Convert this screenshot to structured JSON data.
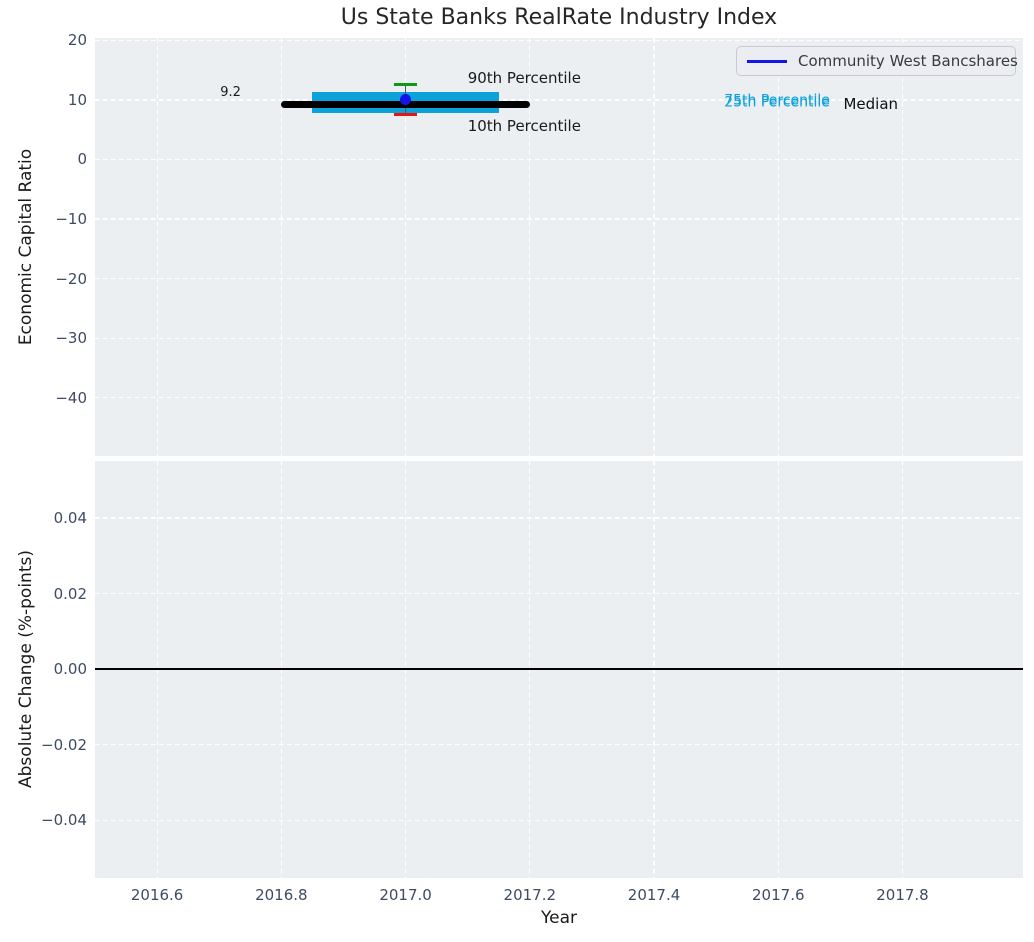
{
  "title": "Us State Banks RealRate Industry Index",
  "legend": {
    "label": "Community West Bancshares",
    "line_color": "#1414e8"
  },
  "xaxis": {
    "label": "Year",
    "xlim": [
      2016.5,
      2017.994
    ],
    "ticks": [
      {
        "v": 2016.6,
        "label": "2016.6"
      },
      {
        "v": 2016.8,
        "label": "2016.8"
      },
      {
        "v": 2017.0,
        "label": "2017.0"
      },
      {
        "v": 2017.2,
        "label": "2017.2"
      },
      {
        "v": 2017.4,
        "label": "2017.4"
      },
      {
        "v": 2017.6,
        "label": "2017.6"
      },
      {
        "v": 2017.8,
        "label": "2017.8"
      }
    ]
  },
  "chart_data": [
    {
      "type": "boxplot",
      "panel": "top",
      "title": "Us State Banks RealRate Industry Index",
      "ylabel": "Economic Capital Ratio",
      "ylim": [
        -49.8,
        20.4
      ],
      "grid": "white-dashed",
      "legend_position": "upper right",
      "yticks": [
        {
          "v": 20,
          "label": "20"
        },
        {
          "v": 10,
          "label": "10"
        },
        {
          "v": 0,
          "label": "0"
        },
        {
          "v": -10,
          "label": "−10"
        },
        {
          "v": -20,
          "label": "−20"
        },
        {
          "v": -30,
          "label": "−30"
        },
        {
          "v": -40,
          "label": "−40"
        }
      ],
      "series": [
        {
          "name": "Community West Bancshares",
          "x": [
            2017.0
          ],
          "y": [
            10.0
          ],
          "color": "#1414e8",
          "marker": "circle"
        }
      ],
      "industry_box": {
        "year": 2017.0,
        "p90": 12.6,
        "p75": 11.4,
        "median": 9.2,
        "p25": 7.8,
        "p10": 7.6,
        "box_span": [
          2016.85,
          2017.15
        ],
        "median_span": [
          2016.8,
          2017.2
        ],
        "cap_half_width_years": 0.018,
        "box_color": "#0ca2d9",
        "median_color": "#000000",
        "p90_color": "#0a9a15",
        "p10_color": "#e81410",
        "whisker_color": "#555555"
      },
      "annotations": [
        {
          "text": "9.2",
          "x": 2016.735,
          "y": 11.2,
          "color": "#1a1a1a",
          "size": 13,
          "ha": "right"
        },
        {
          "text": "90th Percentile",
          "x": 2017.1,
          "y": 13.7,
          "color": "#1a1a1a",
          "size": 15,
          "ha": "left"
        },
        {
          "text": "10th Percentile",
          "x": 2017.1,
          "y": 5.7,
          "color": "#1a1a1a",
          "size": 15,
          "ha": "left"
        },
        {
          "text": "75th Percentile",
          "x": 2017.513,
          "y": 9.9,
          "color": "#0ca2d9",
          "size": 14,
          "ha": "left"
        },
        {
          "text": "25th Percentile",
          "x": 2017.513,
          "y": 9.55,
          "color": "#0ca2d9",
          "size": 14,
          "ha": "left"
        },
        {
          "text": "Median",
          "x": 2017.705,
          "y": 9.25,
          "color": "#111111",
          "size": 15,
          "ha": "left"
        }
      ]
    },
    {
      "type": "line",
      "panel": "bottom",
      "ylabel": "Absolute Change (%-points)",
      "ylim": [
        -0.0553,
        0.0551
      ],
      "grid": "white-dashed",
      "yticks": [
        {
          "v": 0.04,
          "label": "0.04"
        },
        {
          "v": 0.02,
          "label": "0.02"
        },
        {
          "v": 0.0,
          "label": "0.00"
        },
        {
          "v": -0.02,
          "label": "−0.02"
        },
        {
          "v": -0.04,
          "label": "−0.04"
        }
      ],
      "zero_line": {
        "y": 0.0,
        "color": "#000000"
      },
      "series": []
    }
  ],
  "colors": {
    "plot_bg": "#eceff1",
    "grid": "#ffffff",
    "tick_label": "#3d4c63",
    "axis_label": "#1a1a1a",
    "title": "#262626",
    "legend_bg": "#ebebf3",
    "legend_border": "#c9c9cf"
  }
}
